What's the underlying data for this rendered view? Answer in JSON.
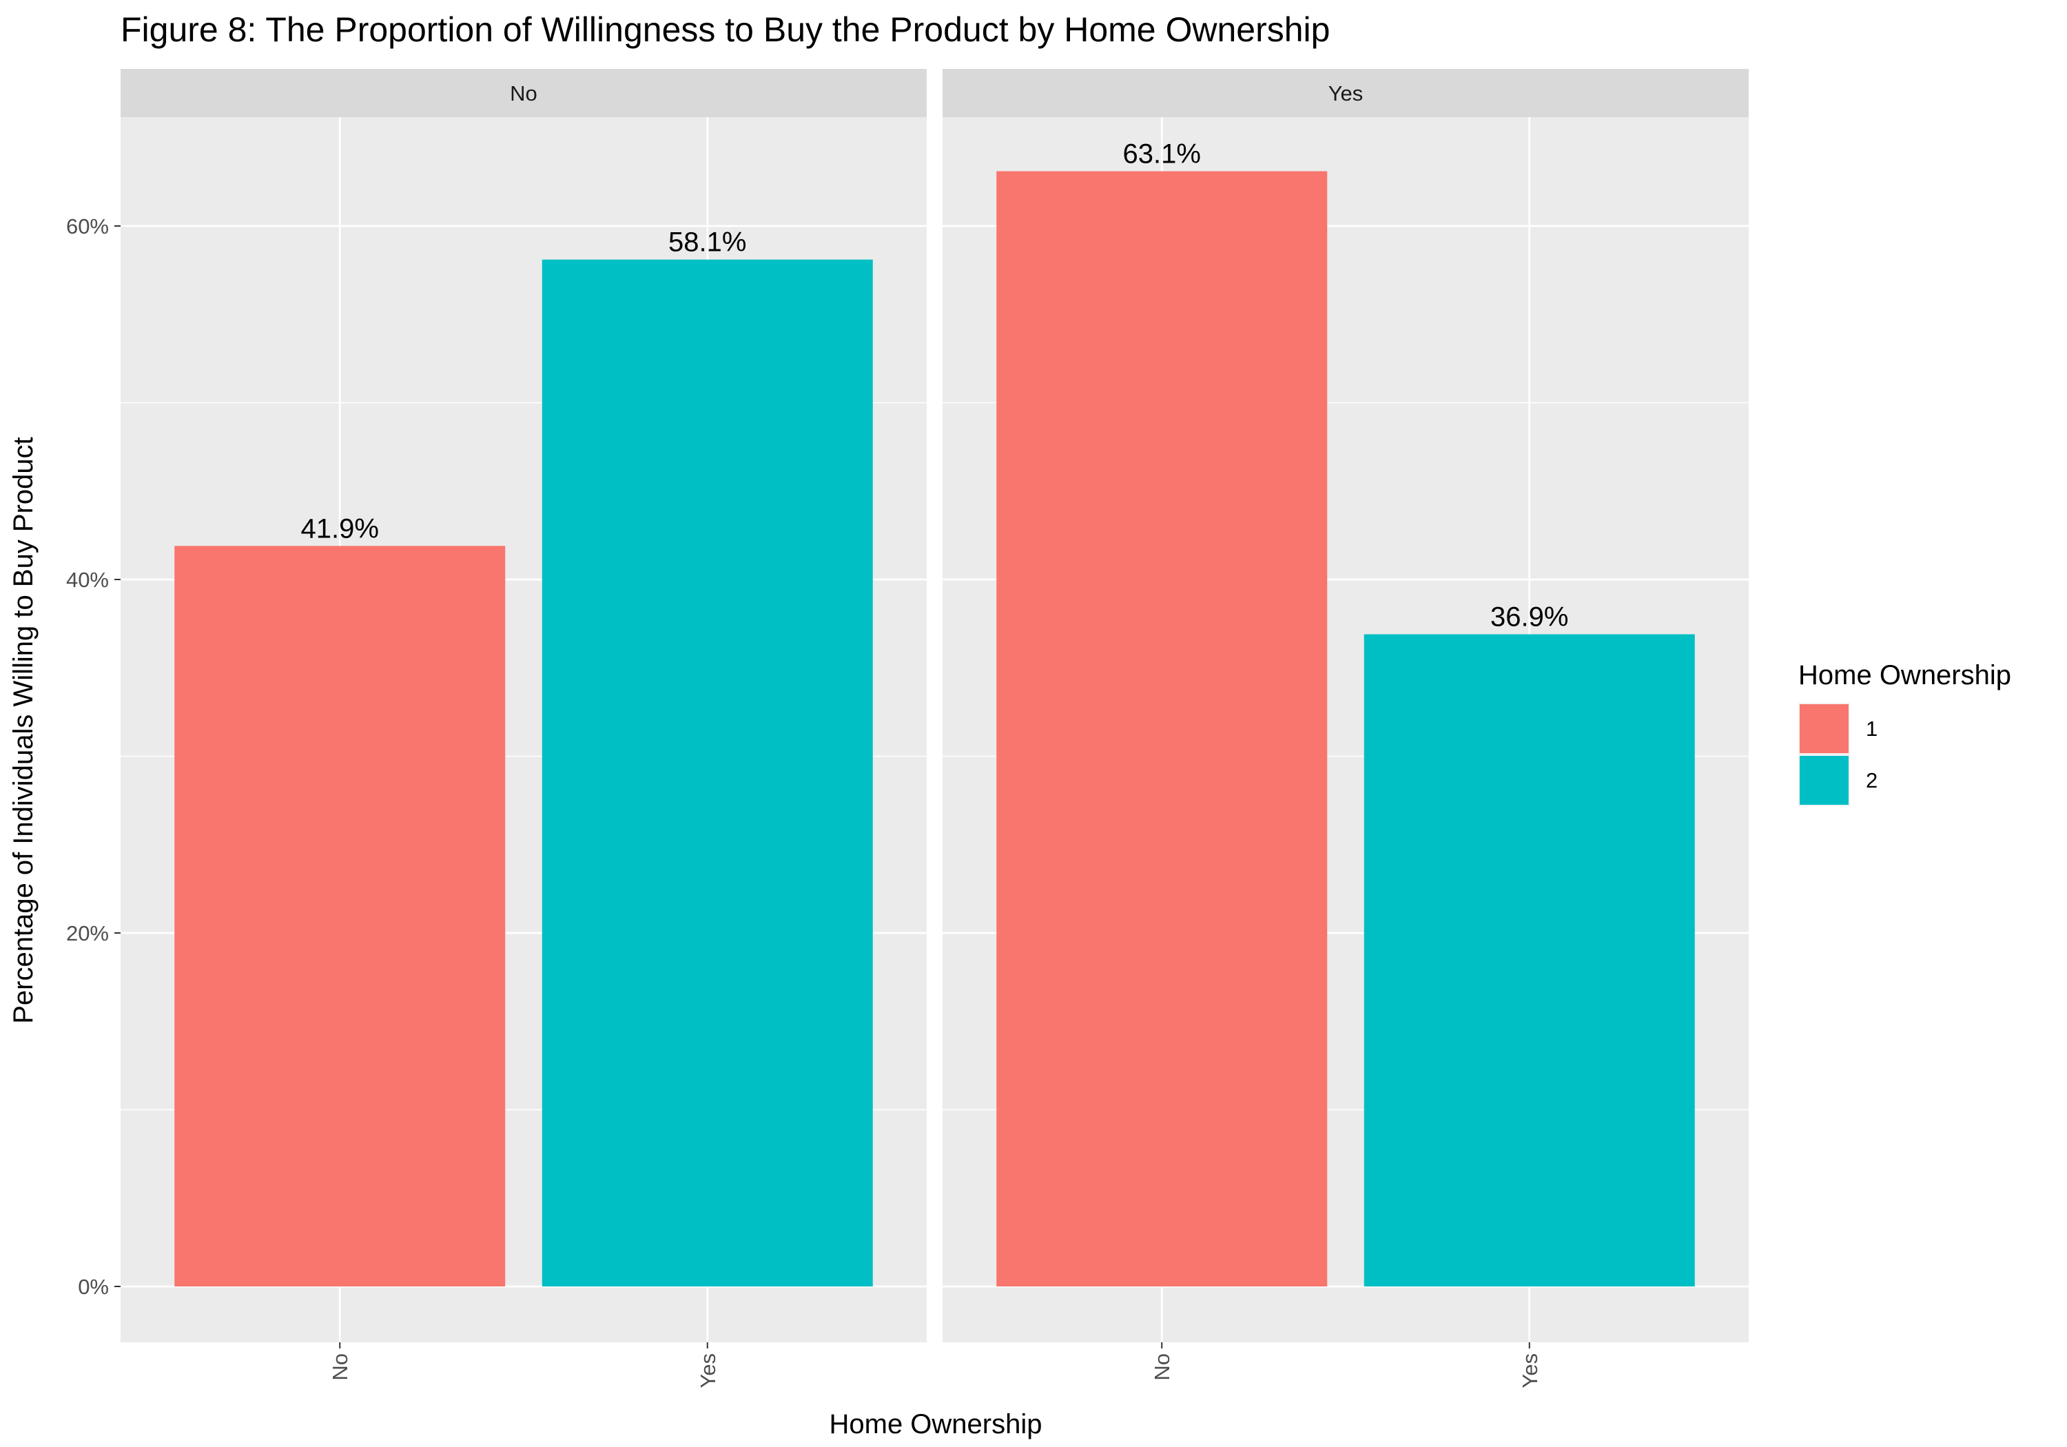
{
  "chart_data": {
    "type": "bar",
    "title": "Figure 8: The Proportion of Willingness to Buy the Product by Home Ownership",
    "xlabel": "Home Ownership",
    "ylabel": "Percentage of Individuals Willing to Buy Product",
    "ylim": [
      0,
      0.66
    ],
    "y_ticks": [
      0,
      0.2,
      0.4,
      0.6
    ],
    "y_tick_labels": [
      "0%",
      "20%",
      "40%",
      "60%"
    ],
    "categories": [
      "No",
      "Yes"
    ],
    "grid": true,
    "legend": {
      "title": "Home Ownership",
      "position": "right",
      "entries": [
        {
          "label": "1",
          "color": "#F8766D"
        },
        {
          "label": "2",
          "color": "#00BFC4"
        }
      ]
    },
    "facets": [
      {
        "strip": "No",
        "bars": [
          {
            "category": "No",
            "group": "1",
            "value": 0.419,
            "label": "41.9%",
            "color": "#F8766D"
          },
          {
            "category": "Yes",
            "group": "2",
            "value": 0.581,
            "label": "58.1%",
            "color": "#00BFC4"
          }
        ]
      },
      {
        "strip": "Yes",
        "bars": [
          {
            "category": "No",
            "group": "1",
            "value": 0.631,
            "label": "63.1%",
            "color": "#F8766D"
          },
          {
            "category": "Yes",
            "group": "2",
            "value": 0.369,
            "label": "36.9%",
            "color": "#00BFC4"
          }
        ]
      }
    ]
  }
}
